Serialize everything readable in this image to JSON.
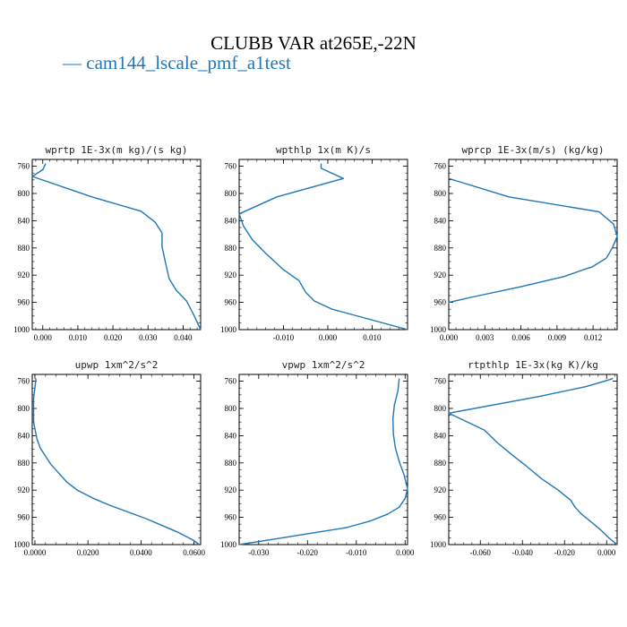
{
  "title": "CLUBB VAR at265E,-22N",
  "legend": {
    "dash": "—",
    "label": "cam144_lscale_pmf_a1test",
    "color": "#1f77b4"
  },
  "chart_data": [
    {
      "type": "line",
      "title": "wprtp  1E-3x(m kg)/(s kg)",
      "xlim": [
        -0.003,
        0.045
      ],
      "ylim": [
        1000,
        750
      ],
      "xticks": [
        0.0,
        0.01,
        0.02,
        0.03,
        0.04
      ],
      "xtick_labels": [
        "0.000",
        "0.010",
        "0.020",
        "0.030",
        "0.040"
      ],
      "yticks": [
        760,
        800,
        840,
        880,
        920,
        960,
        1000
      ],
      "series": [
        {
          "x": [
            0.0008,
            0.0,
            -0.003,
            0.014,
            0.028,
            0.032,
            0.034,
            0.034,
            0.035,
            0.036,
            0.038,
            0.041,
            0.043,
            0.045
          ],
          "y": [
            756,
            765,
            775,
            805,
            826,
            842,
            858,
            878,
            902,
            925,
            942,
            958,
            978,
            1000
          ]
        }
      ]
    },
    {
      "type": "line",
      "title": "wpthlp  1x(m K)/s",
      "xlim": [
        -0.02,
        0.018
      ],
      "ylim": [
        1000,
        750
      ],
      "xticks": [
        -0.01,
        0.0,
        0.01
      ],
      "xtick_labels": [
        "-0.010",
        "0.000",
        "0.010"
      ],
      "yticks": [
        760,
        800,
        840,
        880,
        920,
        960,
        1000
      ],
      "series": [
        {
          "x": [
            -0.0015,
            -0.0015,
            0.0035,
            -0.0115,
            -0.02,
            -0.019,
            -0.017,
            -0.014,
            -0.01,
            -0.0065,
            -0.005,
            -0.003,
            0.001,
            0.018
          ],
          "y": [
            756,
            763,
            778,
            805,
            830,
            848,
            868,
            888,
            912,
            928,
            945,
            958,
            970,
            1000
          ]
        }
      ]
    },
    {
      "type": "line",
      "title": "wprcp  1E-3x(m/s) (kg/kg)",
      "xlim": [
        0.0,
        0.014
      ],
      "ylim": [
        1000,
        750
      ],
      "xticks": [
        0.0,
        0.003,
        0.006,
        0.009,
        0.012
      ],
      "xtick_labels": [
        "0.000",
        "0.003",
        "0.006",
        "0.009",
        "0.012"
      ],
      "yticks": [
        760,
        800,
        840,
        880,
        920,
        960,
        1000
      ],
      "series": [
        {
          "x": [
            0.0,
            0.005,
            0.0125,
            0.0137,
            0.014,
            0.0136,
            0.0131,
            0.0119,
            0.0112,
            0.0096,
            0.006,
            0.002,
            0.0,
            0.0
          ],
          "y": [
            778,
            805,
            827,
            845,
            863,
            880,
            895,
            908,
            912,
            922,
            937,
            952,
            960,
            962
          ]
        }
      ]
    },
    {
      "type": "line",
      "title": "upwp  1xm^2/s^2",
      "xlim": [
        -0.001,
        0.0625
      ],
      "ylim": [
        1000,
        750
      ],
      "xticks": [
        0.0,
        0.02,
        0.04,
        0.06
      ],
      "xtick_labels": [
        "0.0000",
        "0.0200",
        "0.0400",
        "0.0600"
      ],
      "yticks": [
        760,
        800,
        840,
        880,
        920,
        960,
        1000
      ],
      "series": [
        {
          "x": [
            0.0004,
            0.0,
            -0.0005,
            -0.0005,
            0.0008,
            0.002,
            0.004,
            0.006,
            0.009,
            0.012,
            0.016,
            0.022,
            0.028,
            0.035,
            0.042,
            0.048,
            0.054,
            0.0595,
            0.062
          ],
          "y": [
            756,
            770,
            785,
            820,
            845,
            858,
            870,
            882,
            895,
            908,
            920,
            932,
            942,
            952,
            962,
            972,
            982,
            993,
            1000
          ]
        }
      ]
    },
    {
      "type": "line",
      "title": "vpwp  1xm^2/s^2",
      "xlim": [
        -0.034,
        0.0005
      ],
      "ylim": [
        1000,
        750
      ],
      "xticks": [
        -0.03,
        -0.02,
        -0.01,
        0.0
      ],
      "xtick_labels": [
        "-0.030",
        "-0.020",
        "-0.010",
        "0.000"
      ],
      "yticks": [
        760,
        800,
        840,
        880,
        920,
        960,
        1000
      ],
      "series": [
        {
          "x": [
            -0.0012,
            -0.0015,
            -0.0022,
            -0.0025,
            -0.0024,
            -0.002,
            -0.0012,
            -0.0002,
            0.0005,
            0.0,
            -0.0012,
            -0.0035,
            -0.007,
            -0.012,
            -0.019,
            -0.026,
            -0.034
          ],
          "y": [
            756,
            775,
            795,
            815,
            838,
            858,
            878,
            898,
            918,
            932,
            945,
            955,
            965,
            975,
            983,
            991,
            1000
          ]
        }
      ]
    },
    {
      "type": "line",
      "title": "rtpthlp  1E-3x(kg K)/kg",
      "xlim": [
        -0.075,
        0.005
      ],
      "ylim": [
        1000,
        750
      ],
      "xticks": [
        -0.06,
        -0.04,
        -0.02,
        0.0
      ],
      "xtick_labels": [
        "-0.060",
        "-0.040",
        "-0.020",
        "0.000"
      ],
      "yticks": [
        760,
        800,
        840,
        880,
        920,
        960,
        1000
      ],
      "series": [
        {
          "x": [
            0.003,
            -0.001,
            -0.01,
            -0.033,
            -0.075,
            -0.058,
            -0.052,
            -0.045,
            -0.038,
            -0.031,
            -0.023,
            -0.017,
            -0.015,
            -0.012,
            -0.008,
            -0.003,
            0.001,
            0.005
          ],
          "y": [
            756,
            760,
            768,
            783,
            807,
            832,
            850,
            868,
            885,
            903,
            920,
            935,
            945,
            955,
            965,
            978,
            990,
            1000
          ]
        }
      ]
    }
  ]
}
